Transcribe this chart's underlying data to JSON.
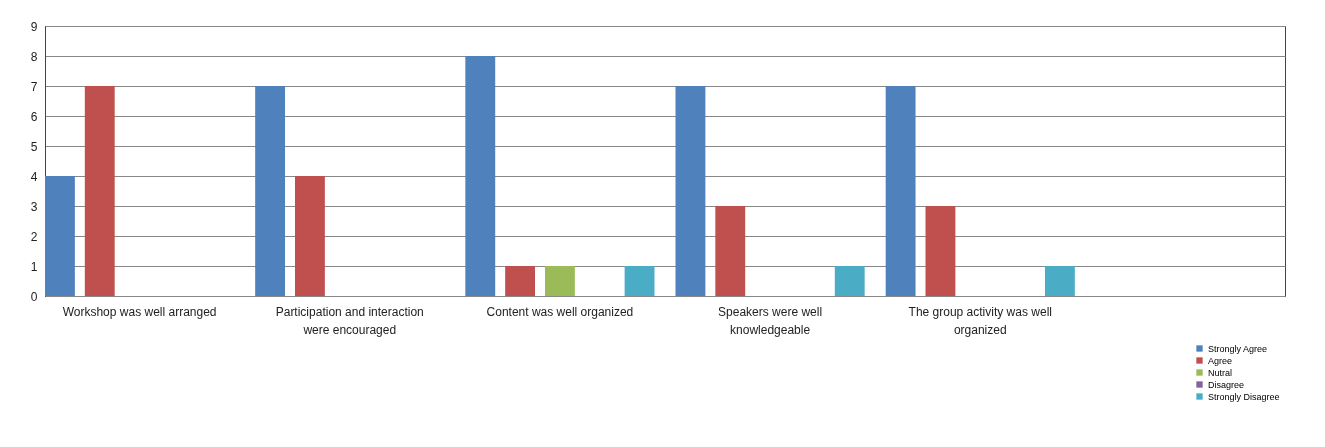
{
  "chart_data": {
    "type": "bar",
    "categories": [
      "Workshop was well arranged",
      "Participation and interaction were encouraged",
      "Content was well organized",
      "Speakers were well knowledgeable",
      "The group activity was well organized",
      null
    ],
    "series": [
      {
        "name": "Strongly Agree",
        "color": "#4f81bd",
        "values": [
          4,
          7,
          8,
          7,
          7,
          null
        ]
      },
      {
        "name": "Agree",
        "color": "#c0504d",
        "values": [
          7,
          4,
          1,
          3,
          3,
          null
        ]
      },
      {
        "name": "Nutral",
        "color": "#9bbb59",
        "values": [
          null,
          null,
          1,
          null,
          null,
          null
        ]
      },
      {
        "name": "Disagree",
        "color": "#8064a2",
        "values": [
          null,
          null,
          null,
          null,
          null,
          null
        ]
      },
      {
        "name": "Strongly Disagree",
        "color": "#4bacc6",
        "values": [
          null,
          null,
          1,
          1,
          1,
          null
        ]
      }
    ],
    "ylim": [
      0,
      9
    ],
    "yticks": [
      0,
      1,
      2,
      3,
      4,
      5,
      6,
      7,
      8,
      9
    ],
    "grid": "y",
    "legend": "bottom right"
  }
}
